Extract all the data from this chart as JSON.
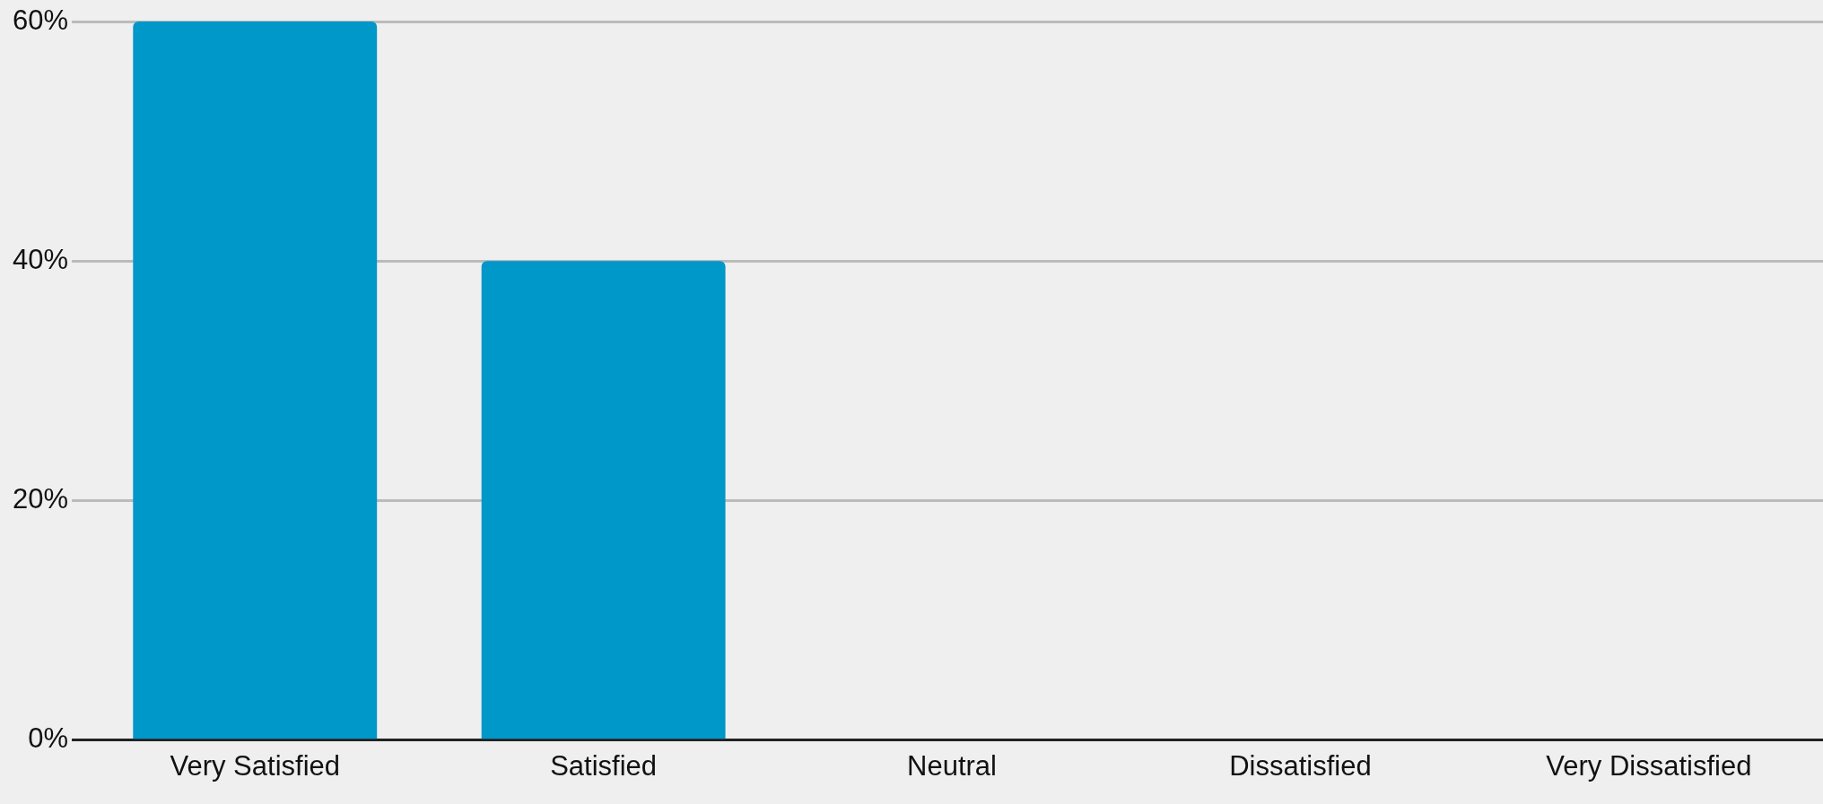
{
  "chart_data": {
    "type": "bar",
    "categories": [
      "Very Satisfied",
      "Satisfied",
      "Neutral",
      "Dissatisfied",
      "Very Dissatisfied"
    ],
    "values": [
      60,
      40,
      0,
      0,
      0
    ],
    "color": "#0097c9",
    "ylim": [
      0,
      60
    ],
    "yticks": [
      {
        "value": 0,
        "label": "0%"
      },
      {
        "value": 20,
        "label": "20%"
      },
      {
        "value": 40,
        "label": "40%"
      },
      {
        "value": 60,
        "label": "60%"
      }
    ],
    "grid": "y",
    "legend": false
  }
}
